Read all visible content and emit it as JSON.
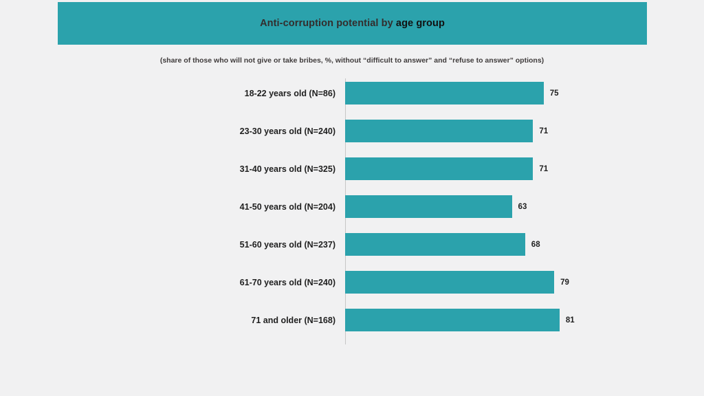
{
  "slide": {
    "title_prefix": "Anti-corruption potential by ",
    "title_emphasis": "age group",
    "subtitle": "(share of those who will not give or take bribes, %, without “difficult to answer” and “refuse to answer” options)"
  },
  "colors": {
    "accent": "#2BA2AC",
    "background": "#f1f1f2",
    "text": "#1f1f1f"
  },
  "chart_data": {
    "type": "bar",
    "orientation": "horizontal",
    "title": "Anti-corruption potential by age group",
    "subtitle": "(share of those who will not give or take bribes, %, without “difficult to answer” and “refuse to answer” options)",
    "categories": [
      "18-22 years old (N=86)",
      "23-30 years old (N=240)",
      "31-40 years old (N=325)",
      "41-50 years old (N=204)",
      "51-60 years old (N=237)",
      "61-70 years old (N=240)",
      "71 and older (N=168)"
    ],
    "values": [
      75,
      71,
      71,
      63,
      68,
      79,
      81
    ],
    "xlim": [
      0,
      100
    ],
    "value_labels": true,
    "grid": false,
    "legend": false,
    "bar_color": "#2BA2AC"
  }
}
